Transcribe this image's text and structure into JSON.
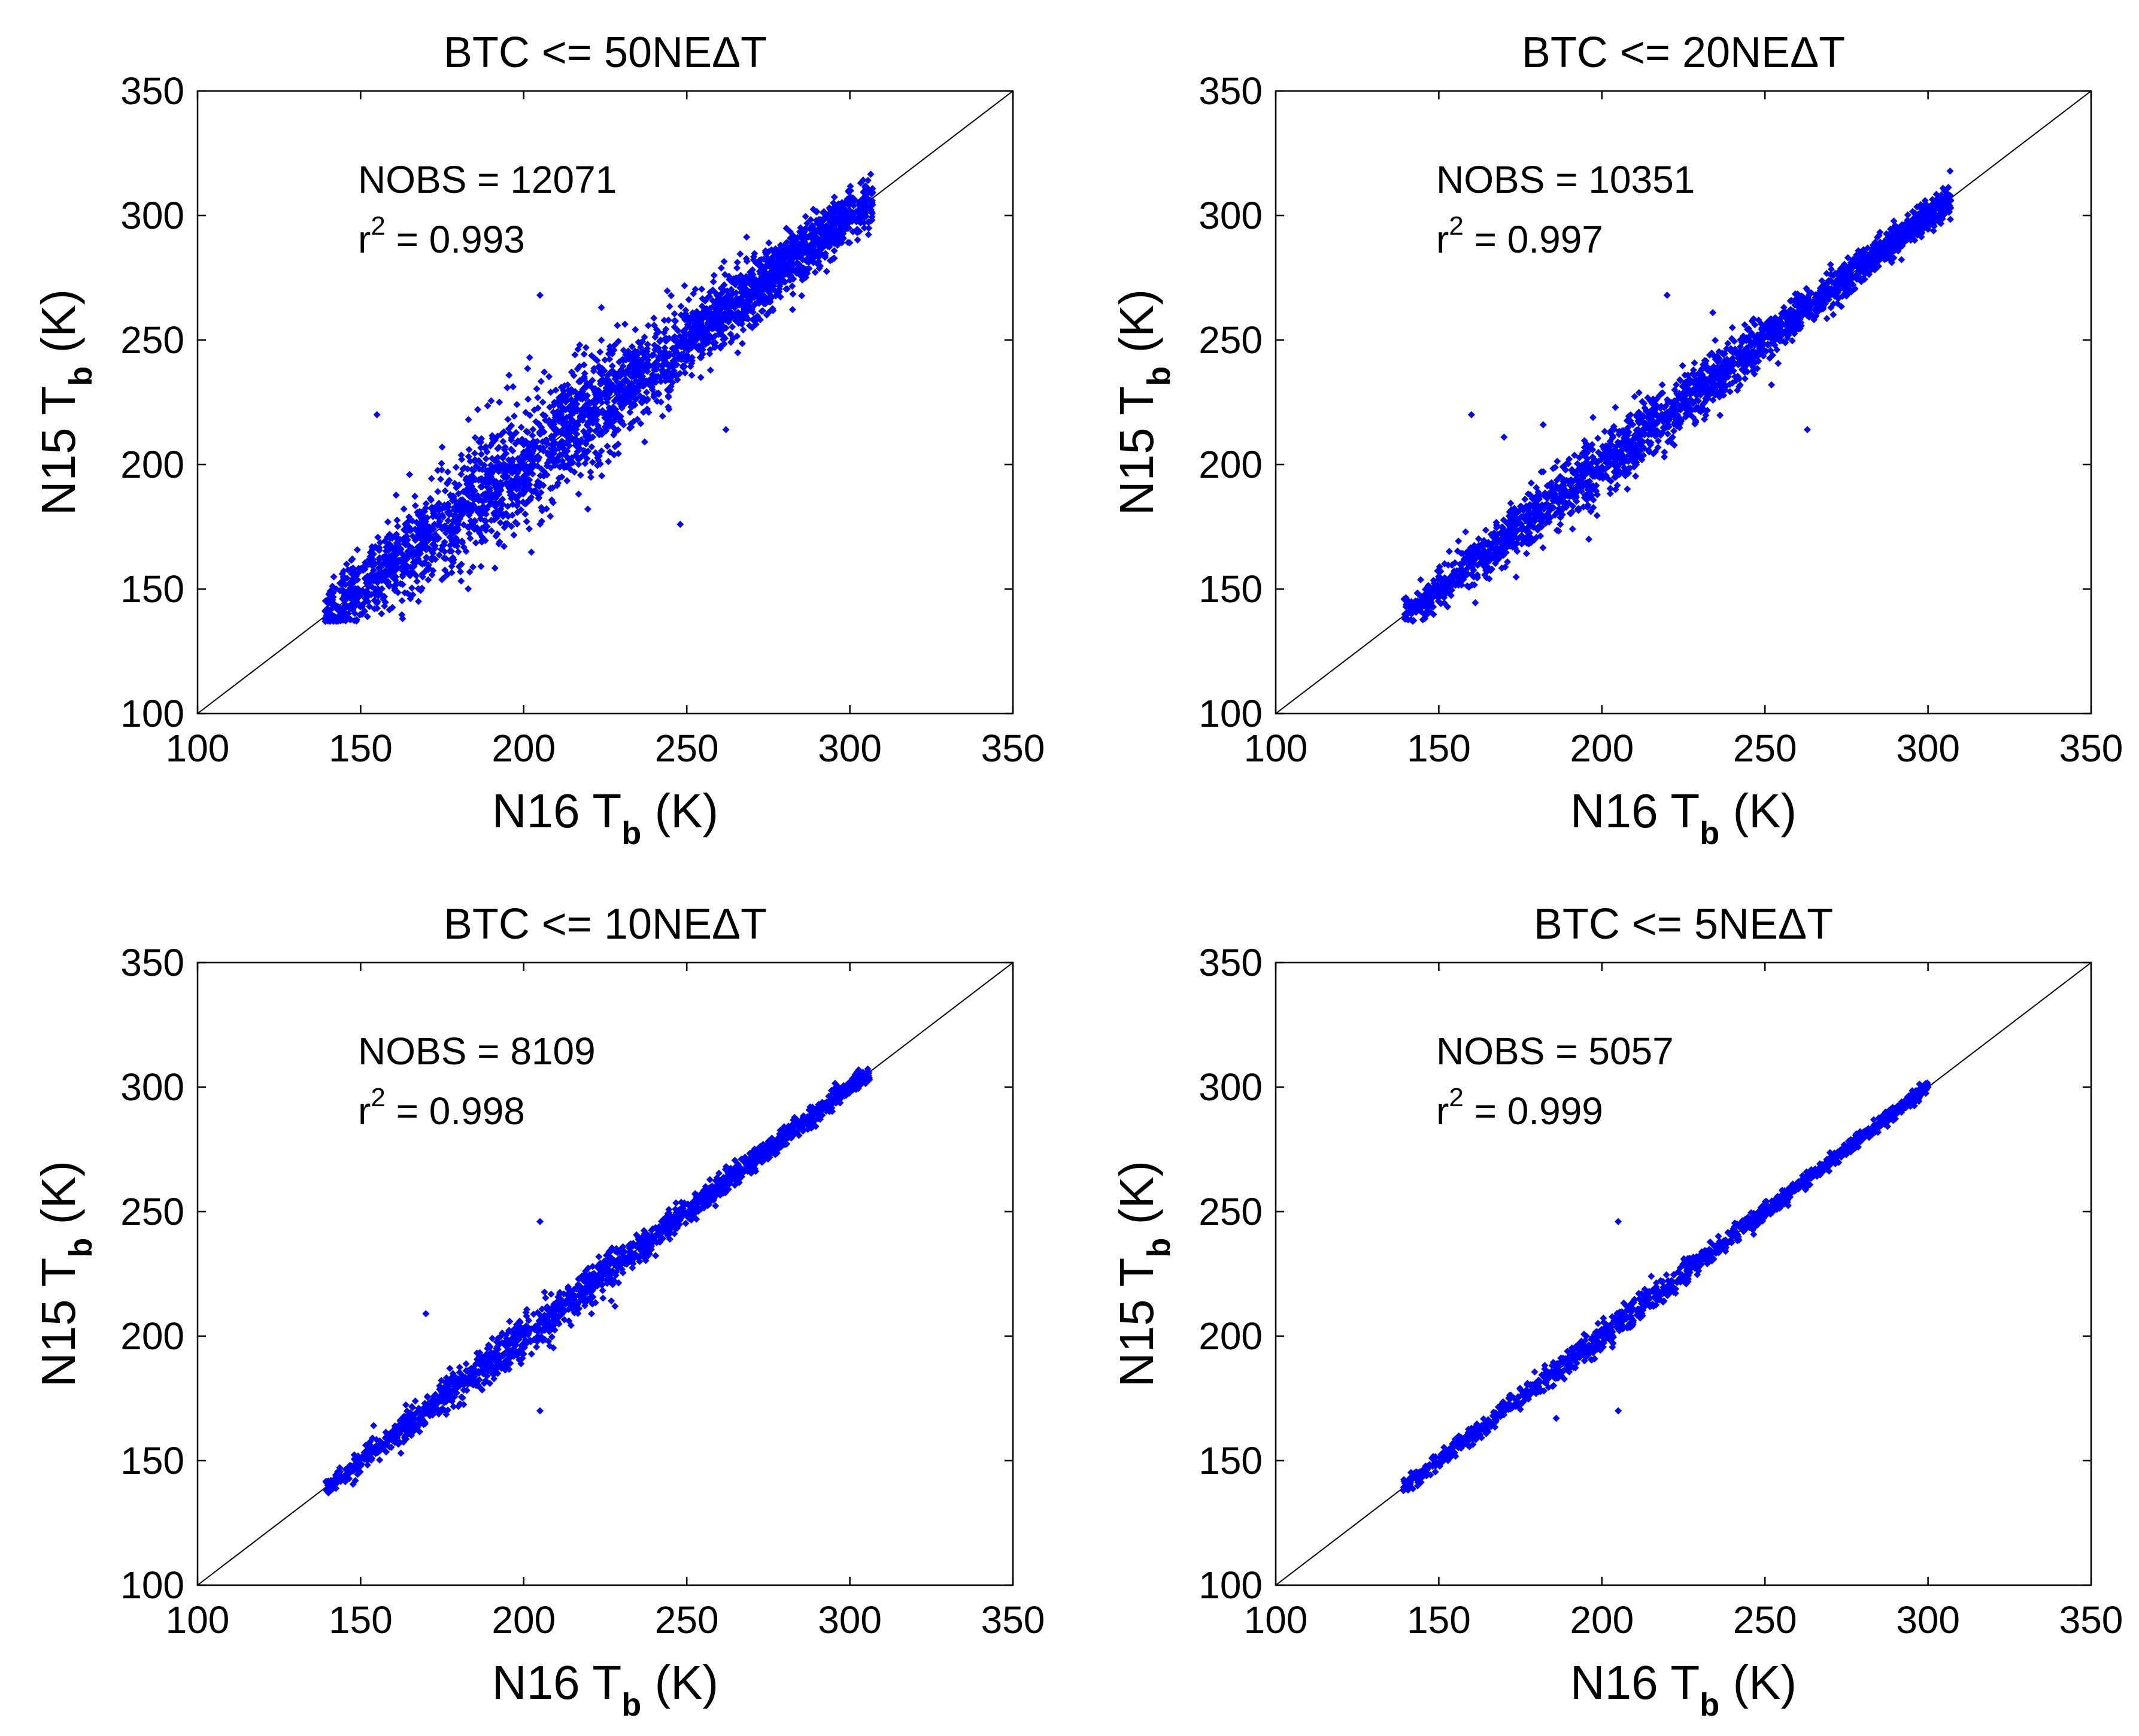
{
  "figure": {
    "marker_color": "#0000ff",
    "axis_color": "#000000"
  },
  "chart_data": [
    {
      "type": "scatter",
      "title": "BTC <= 50NEΔT",
      "xlabel": {
        "main": "N16 T",
        "sub": "b",
        "unit": " (K)"
      },
      "ylabel": {
        "main": "N15 T",
        "sub": "b",
        "unit": " (K)"
      },
      "xlim": [
        100,
        350
      ],
      "ylim": [
        100,
        350
      ],
      "xticks": [
        "100",
        "150",
        "200",
        "250",
        "300",
        "350"
      ],
      "yticks": [
        "100",
        "150",
        "200",
        "250",
        "300",
        "350"
      ],
      "annotation": {
        "nobs": "NOBS = 12071",
        "r_prefix": "r",
        "r_sup": "2",
        "r_value": " = 0.993"
      },
      "reference_line": "y = x",
      "band": {
        "x_range": [
          139,
          307
        ],
        "spread": 9,
        "count": 3200
      },
      "x": [
        140,
        160,
        180,
        200,
        220,
        240,
        260,
        280,
        300,
        155,
        165,
        175,
        230,
        248,
        262,
        205,
        195,
        250
      ],
      "y": [
        139,
        162,
        176,
        205,
        221,
        238,
        259,
        280,
        302,
        220,
        196,
        207,
        237,
        176,
        214,
        268,
        195,
        244
      ]
    },
    {
      "type": "scatter",
      "title": "BTC <= 20NEΔT",
      "xlabel": {
        "main": "N16 T",
        "sub": "b",
        "unit": " (K)"
      },
      "ylabel": {
        "main": "N15 T",
        "sub": "b",
        "unit": " (K)"
      },
      "xlim": [
        100,
        350
      ],
      "ylim": [
        100,
        350
      ],
      "xticks": [
        "100",
        "150",
        "200",
        "250",
        "300",
        "350"
      ],
      "yticks": [
        "100",
        "150",
        "200",
        "250",
        "300",
        "350"
      ],
      "annotation": {
        "nobs": "NOBS = 10351",
        "r_prefix": "r",
        "r_sup": "2",
        "r_value": " = 0.997"
      },
      "reference_line": "y = x",
      "band": {
        "x_range": [
          139,
          307
        ],
        "spread": 5,
        "count": 2400
      },
      "x": [
        140,
        160,
        180,
        200,
        220,
        240,
        260,
        280,
        300,
        160,
        170,
        182,
        196,
        220,
        234,
        240,
        263,
        252,
        300
      ],
      "y": [
        140,
        159,
        181,
        199,
        221,
        240,
        259,
        281,
        300,
        220,
        211,
        216,
        170,
        268,
        261,
        255,
        214,
        232,
        303
      ]
    },
    {
      "type": "scatter",
      "title": "BTC <= 10NEΔT",
      "xlabel": {
        "main": "N16 T",
        "sub": "b",
        "unit": " (K)"
      },
      "ylabel": {
        "main": "N15 T",
        "sub": "b",
        "unit": " (K)"
      },
      "xlim": [
        100,
        350
      ],
      "ylim": [
        100,
        350
      ],
      "xticks": [
        "100",
        "150",
        "200",
        "250",
        "300",
        "350"
      ],
      "yticks": [
        "100",
        "150",
        "200",
        "250",
        "300",
        "350"
      ],
      "annotation": {
        "nobs": "NOBS = 8109",
        "r_prefix": "r",
        "r_sup": "2",
        "r_value": " = 0.998"
      },
      "reference_line": "y = x",
      "band": {
        "x_range": [
          139,
          306
        ],
        "spread": 3,
        "count": 1800
      },
      "x": [
        140,
        160,
        180,
        200,
        220,
        240,
        260,
        280,
        300,
        170,
        205,
        205,
        228,
        306
      ],
      "y": [
        140,
        160,
        180,
        200,
        220,
        240,
        260,
        280,
        300,
        209,
        246,
        170,
        212,
        303
      ]
    },
    {
      "type": "scatter",
      "title": "BTC <= 5NEΔT",
      "xlabel": {
        "main": "N16 T",
        "sub": "b",
        "unit": " (K)"
      },
      "ylabel": {
        "main": "N15 T",
        "sub": "b",
        "unit": " (K)"
      },
      "xlim": [
        100,
        350
      ],
      "ylim": [
        100,
        350
      ],
      "xticks": [
        "100",
        "150",
        "200",
        "250",
        "300",
        "350"
      ],
      "yticks": [
        "100",
        "150",
        "200",
        "250",
        "300",
        "350"
      ],
      "annotation": {
        "nobs": "NOBS = 5057",
        "r_prefix": "r",
        "r_sup": "2",
        "r_value": " = 0.999"
      },
      "reference_line": "y = x",
      "band": {
        "x_range": [
          139,
          300
        ],
        "spread": 2,
        "count": 1400
      },
      "x": [
        140,
        160,
        180,
        200,
        220,
        240,
        260,
        280,
        300,
        205,
        205,
        186
      ],
      "y": [
        140,
        160,
        180,
        200,
        220,
        240,
        260,
        280,
        300,
        246,
        170,
        167
      ]
    }
  ]
}
